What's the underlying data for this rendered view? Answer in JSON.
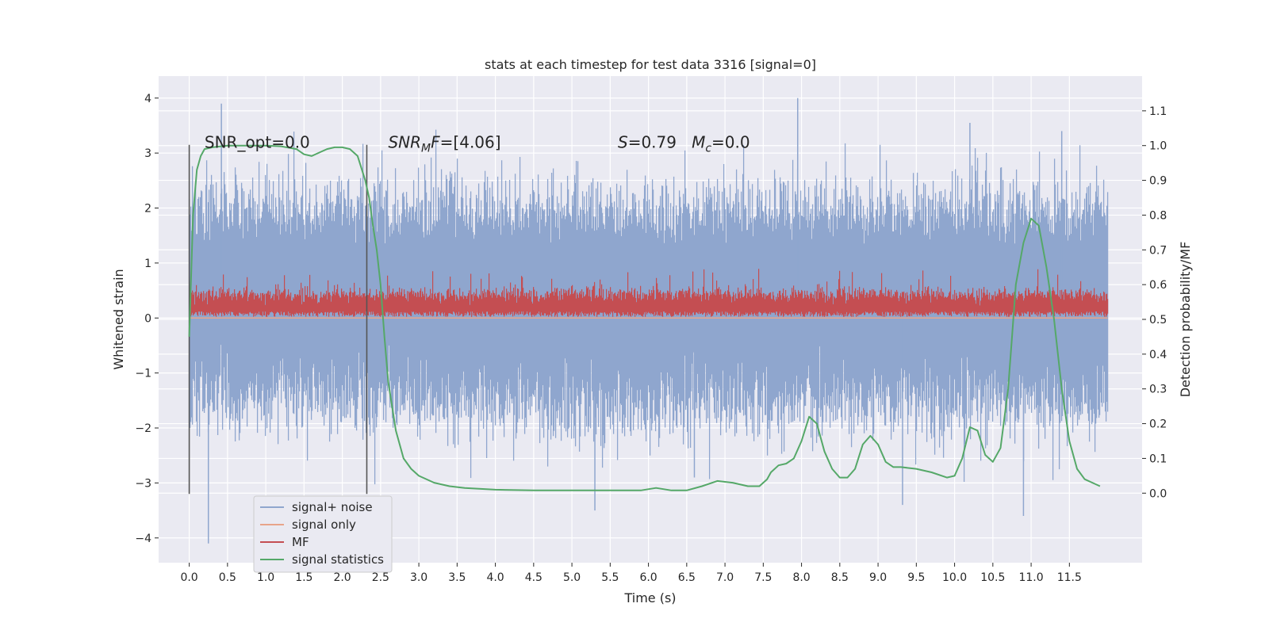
{
  "chart_data": {
    "type": "line",
    "title": "stats at each timestep for test data 3316 [signal=0]",
    "xlabel": "Time (s)",
    "ylabel": "Whitened strain",
    "ylabel_right": "Detection probability/MF",
    "xlim": [
      -0.4,
      12.45
    ],
    "ylim": [
      -4.45,
      4.4
    ],
    "ylim_right": [
      -0.2,
      1.2
    ],
    "xticks": [
      0.0,
      0.5,
      1.0,
      1.5,
      2.0,
      2.5,
      3.0,
      3.5,
      4.0,
      4.5,
      5.0,
      5.5,
      6.0,
      6.5,
      7.0,
      7.5,
      8.0,
      8.5,
      9.0,
      9.5,
      10.0,
      10.5,
      11.0,
      11.5
    ],
    "xtick_labels": [
      "0.0",
      "0.5",
      "1.0",
      "1.5",
      "2.0",
      "2.5",
      "3.0",
      "3.5",
      "4.0",
      "4.5",
      "5.0",
      "5.5",
      "6.0",
      "6.5",
      "7.0",
      "7.5",
      "8.0",
      "8.5",
      "9.0",
      "9.5",
      "10.0",
      "10.5",
      "11.0",
      "11.5"
    ],
    "yticks": [
      -4,
      -3,
      -2,
      -1,
      0,
      1,
      2,
      3,
      4
    ],
    "ytick_labels": [
      "−4",
      "−3",
      "−2",
      "−1",
      "0",
      "1",
      "2",
      "3",
      "4"
    ],
    "yticks_right": [
      0.0,
      0.1,
      0.2,
      0.3,
      0.4,
      0.5,
      0.6,
      0.7,
      0.8,
      0.9,
      1.0,
      1.1
    ],
    "ytick_labels_right": [
      "0.0",
      "0.1",
      "0.2",
      "0.3",
      "0.4",
      "0.5",
      "0.6",
      "0.7",
      "0.8",
      "0.9",
      "1.0",
      "1.1"
    ],
    "grid": true,
    "legend_position": "lower-left",
    "annotations": [
      {
        "text": "SNR_opt=0.0",
        "x": 0.2,
        "y": 3.2
      },
      {
        "text": "SNR_MF=[4.06]",
        "x": 2.6,
        "y": 3.2
      },
      {
        "text": "S=0.79   M_c=0.0",
        "x": 5.6,
        "y": 3.2
      }
    ],
    "vertical_markers": [
      {
        "x": 0.0,
        "ymin": -3.2,
        "ymax": 3.15
      },
      {
        "x": 2.32,
        "ymin": -3.2,
        "ymax": 3.15
      }
    ],
    "series": [
      {
        "name": "signal+ noise",
        "color": "#8fa6ce",
        "kind": "noise",
        "x_range": [
          0.0,
          12.0
        ],
        "envelope_typical": [
          -1.8,
          2.4
        ],
        "extreme_min": -4.1,
        "extreme_max": 4.0
      },
      {
        "name": "signal only",
        "color": "#e8a48a",
        "kind": "flat",
        "y": 0.0
      },
      {
        "name": "MF",
        "color": "#c44e52",
        "kind": "noise_band",
        "x_range": [
          0.0,
          12.0
        ],
        "y_low": 0.0,
        "y_high": 0.6,
        "y_max": 0.9
      },
      {
        "name": "signal statistics",
        "color": "#55a868",
        "kind": "line",
        "axis": "right",
        "x": [
          0.0,
          0.05,
          0.1,
          0.15,
          0.2,
          0.3,
          0.5,
          0.8,
          1.0,
          1.2,
          1.4,
          1.5,
          1.6,
          1.7,
          1.8,
          1.9,
          2.0,
          2.1,
          2.2,
          2.3,
          2.35,
          2.4,
          2.45,
          2.5,
          2.55,
          2.6,
          2.7,
          2.8,
          2.9,
          3.0,
          3.2,
          3.4,
          3.6,
          4.0,
          4.5,
          5.0,
          5.5,
          5.9,
          6.1,
          6.3,
          6.5,
          6.7,
          6.9,
          7.1,
          7.3,
          7.45,
          7.55,
          7.6,
          7.7,
          7.8,
          7.9,
          8.0,
          8.1,
          8.2,
          8.3,
          8.4,
          8.5,
          8.6,
          8.7,
          8.8,
          8.9,
          9.0,
          9.1,
          9.2,
          9.3,
          9.5,
          9.7,
          9.9,
          10.0,
          10.1,
          10.2,
          10.3,
          10.4,
          10.5,
          10.6,
          10.7,
          10.75,
          10.8,
          10.9,
          11.0,
          11.1,
          11.2,
          11.3,
          11.4,
          11.5,
          11.6,
          11.7,
          11.8,
          11.9
        ],
        "y": [
          0.45,
          0.8,
          0.93,
          0.97,
          0.99,
          0.995,
          1.0,
          1.0,
          1.0,
          0.998,
          0.99,
          0.975,
          0.97,
          0.98,
          0.99,
          0.995,
          0.995,
          0.99,
          0.97,
          0.9,
          0.85,
          0.77,
          0.7,
          0.6,
          0.45,
          0.32,
          0.18,
          0.1,
          0.07,
          0.05,
          0.03,
          0.02,
          0.015,
          0.01,
          0.008,
          0.008,
          0.008,
          0.008,
          0.015,
          0.008,
          0.008,
          0.02,
          0.035,
          0.03,
          0.02,
          0.02,
          0.04,
          0.06,
          0.08,
          0.085,
          0.1,
          0.15,
          0.22,
          0.2,
          0.12,
          0.07,
          0.045,
          0.045,
          0.07,
          0.14,
          0.165,
          0.14,
          0.09,
          0.075,
          0.075,
          0.07,
          0.06,
          0.045,
          0.05,
          0.1,
          0.19,
          0.18,
          0.11,
          0.09,
          0.13,
          0.3,
          0.45,
          0.6,
          0.72,
          0.79,
          0.77,
          0.65,
          0.5,
          0.3,
          0.15,
          0.07,
          0.04,
          0.03,
          0.02
        ]
      }
    ]
  }
}
